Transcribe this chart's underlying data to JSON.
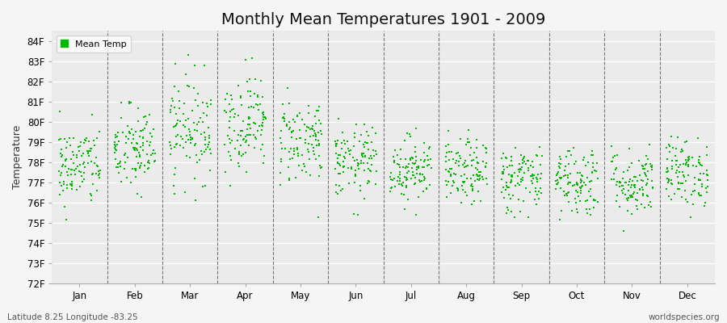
{
  "title": "Monthly Mean Temperatures 1901 - 2009",
  "ylabel": "Temperature",
  "xlabel_bottom_left": "Latitude 8.25 Longitude -83.25",
  "xlabel_bottom_right": "worldspecies.org",
  "ylim": [
    72,
    84.5
  ],
  "yticks": [
    72,
    73,
    74,
    75,
    76,
    77,
    78,
    79,
    80,
    81,
    82,
    83,
    84
  ],
  "months": [
    "Jan",
    "Feb",
    "Mar",
    "Apr",
    "May",
    "Jun",
    "Jul",
    "Aug",
    "Sep",
    "Oct",
    "Nov",
    "Dec"
  ],
  "dot_color": "#00bb00",
  "background_color": "#f5f5f5",
  "plot_bg_color": "#ebebeb",
  "grid_color": "#ffffff",
  "n_years": 109,
  "seed": 42,
  "monthly_mean": [
    77.8,
    78.6,
    79.7,
    80.0,
    79.1,
    78.0,
    77.7,
    77.5,
    77.2,
    77.1,
    77.0,
    77.5
  ],
  "monthly_std": [
    1.0,
    1.1,
    1.3,
    1.2,
    1.1,
    0.9,
    0.8,
    0.8,
    0.85,
    0.9,
    0.85,
    0.85
  ],
  "monthly_spread": [
    0.38,
    0.38,
    0.38,
    0.38,
    0.38,
    0.38,
    0.38,
    0.38,
    0.38,
    0.38,
    0.38,
    0.38
  ],
  "marker_size": 3,
  "title_fontsize": 14,
  "tick_fontsize": 8.5,
  "ylabel_fontsize": 9
}
